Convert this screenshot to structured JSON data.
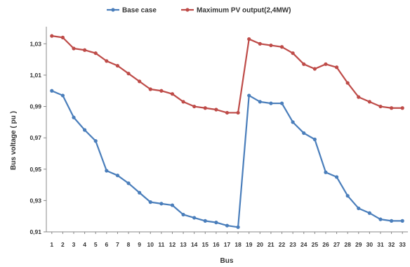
{
  "chart_data": {
    "type": "line",
    "xlabel": "Bus",
    "ylabel": "Bus voltage ( pu )",
    "ylim": [
      0.91,
      1.04
    ],
    "yticks": [
      "0,91",
      "0,93",
      "0,95",
      "0,97",
      "0,99",
      "1,01",
      "1,03"
    ],
    "x": [
      "1",
      "2",
      "3",
      "4",
      "5",
      "6",
      "7",
      "8",
      "9",
      "10",
      "11",
      "12",
      "13",
      "14",
      "15",
      "16",
      "17",
      "18",
      "19",
      "20",
      "21",
      "22",
      "23",
      "24",
      "25",
      "26",
      "27",
      "28",
      "29",
      "30",
      "31",
      "32",
      "33"
    ],
    "grid": false,
    "legend_position": "top",
    "series": [
      {
        "name": "Base case",
        "color": "#4a7ebb",
        "values": [
          1.0,
          0.997,
          0.983,
          0.975,
          0.968,
          0.949,
          0.946,
          0.941,
          0.935,
          0.929,
          0.928,
          0.927,
          0.921,
          0.919,
          0.917,
          0.916,
          0.914,
          0.913,
          0.997,
          0.993,
          0.992,
          0.992,
          0.98,
          0.973,
          0.969,
          0.948,
          0.945,
          0.933,
          0.925,
          0.922,
          0.918,
          0.917,
          0.917
        ]
      },
      {
        "name": "Maximum PV output(2,4MW)",
        "color": "#be4b48",
        "values": [
          1.035,
          1.034,
          1.027,
          1.026,
          1.024,
          1.019,
          1.016,
          1.011,
          1.006,
          1.001,
          1.0,
          0.998,
          0.993,
          0.99,
          0.989,
          0.988,
          0.986,
          0.986,
          1.033,
          1.03,
          1.029,
          1.028,
          1.024,
          1.017,
          1.014,
          1.017,
          1.015,
          1.005,
          0.996,
          0.993,
          0.99,
          0.989,
          0.989
        ]
      }
    ]
  }
}
